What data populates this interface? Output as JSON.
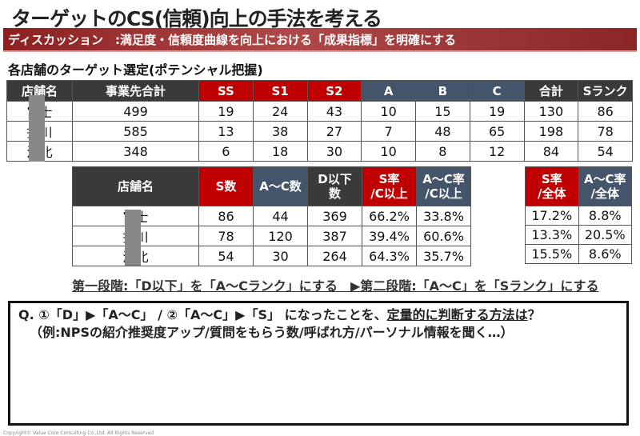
{
  "title": "ターゲットのCS(信頼)向上の手法を考える",
  "banner": "ディスカッション　:満足度・信頼度曲線を向上における「成果指標」を明確にする",
  "subtitle": "各店舗のターゲット選定(ポテンシャル把握)",
  "table1": {
    "headers": [
      "店舗名",
      "事業先合計",
      "SS",
      "S1",
      "S2",
      "A",
      "B",
      "C",
      "合計",
      "Sランク"
    ],
    "rows": [
      [
        "富士",
        "499",
        "19",
        "24",
        "43",
        "10",
        "15",
        "19",
        "130",
        "86"
      ],
      [
        "掛川",
        "585",
        "13",
        "38",
        "27",
        "7",
        "48",
        "65",
        "198",
        "78"
      ],
      [
        "浜北",
        "348",
        "6",
        "18",
        "30",
        "10",
        "8",
        "12",
        "84",
        "54"
      ]
    ]
  },
  "table2": {
    "headers": [
      "店舗名",
      "S数",
      "A～C数",
      "D以下数",
      "S率/C以上",
      "A～C率/C以上"
    ],
    "rows": [
      [
        "富士",
        "86",
        "44",
        "369",
        "66.2%",
        "33.8%"
      ],
      [
        "掛川",
        "78",
        "120",
        "387",
        "39.4%",
        "60.6%"
      ],
      [
        "浜北",
        "54",
        "30",
        "264",
        "64.3%",
        "35.7%"
      ]
    ]
  },
  "table3": {
    "headers": [
      "S率/全体",
      "A～C率/全体"
    ],
    "rows": [
      [
        "17.2%",
        "8.8%"
      ],
      [
        "13.3%",
        "20.5%"
      ],
      [
        "15.5%",
        "8.6%"
      ]
    ]
  },
  "stage": "第一段階:「D以下」を「A～Cランク」にする　▶第二段階:「A～C」を「Sランク」にする",
  "question": {
    "line1_a": "Q.  ①「D」▶「A～C」 /  ②「A～C」▶「S」 になったことを、",
    "line1_b": "定量的に判断する方法は",
    "line1_c": "？",
    "line2": "（例:NPSの紹介推奨度アップ/質問をもらう数/呼ばれ方/パーソナル情報を聞く…）"
  },
  "copyright": "Copyright© Value Core Consulting Co.,Ltd. All Rights Reserved",
  "colors": {
    "red": "#c00000",
    "navy": "#44546a",
    "dark": "#3a3a3a"
  }
}
